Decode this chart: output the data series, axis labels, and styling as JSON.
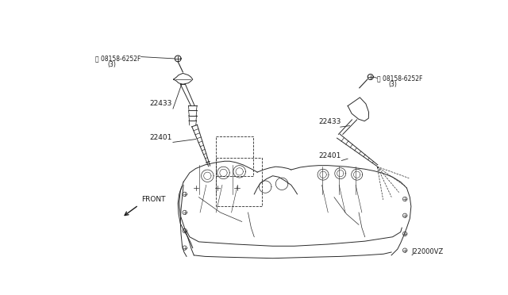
{
  "background_color": "#ffffff",
  "fig_width": 6.4,
  "fig_height": 3.72,
  "dpi": 100,
  "line_color": "#2a2a2a",
  "text_color": "#1a1a1a",
  "label_screw_left": "08158-6252F\n(3)",
  "label_screw_right": "08158-6252F\n(3)",
  "label_22433": "22433",
  "label_22401": "22401",
  "label_front": "FRONT",
  "label_code": "J22000VZ",
  "font_size_small": 5.5,
  "font_size_part": 6.5,
  "font_size_code": 6.0
}
